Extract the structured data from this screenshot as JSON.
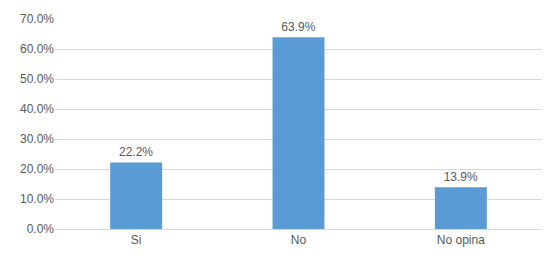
{
  "chart_data": {
    "type": "bar",
    "categories": [
      "Si",
      "No",
      "No opina"
    ],
    "values": [
      22.2,
      63.9,
      13.9
    ],
    "value_labels": [
      "22.2%",
      "63.9%",
      "13.9%"
    ],
    "data_labels": true,
    "color": "#5b9bd5",
    "ylim": [
      0,
      70
    ],
    "yticks": [
      {
        "value": 0,
        "label": "0.0%"
      },
      {
        "value": 10,
        "label": "10.0%"
      },
      {
        "value": 20,
        "label": "20.0%"
      },
      {
        "value": 30,
        "label": "30.0%"
      },
      {
        "value": 40,
        "label": "40.0%"
      },
      {
        "value": 50,
        "label": "50.0%"
      },
      {
        "value": 60,
        "label": "60.0%"
      },
      {
        "value": 70,
        "label": "70.0%"
      }
    ],
    "grid": true
  }
}
